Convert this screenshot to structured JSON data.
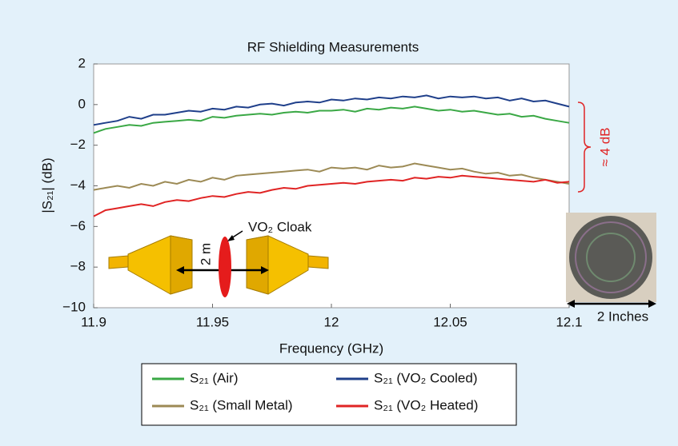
{
  "chart_data": {
    "type": "line",
    "title": "RF Shielding Measurements",
    "x_label": "Frequency (GHz)",
    "y_label": "|S₂₁| (dB)",
    "x": [
      11.9,
      11.905,
      11.91,
      11.915,
      11.92,
      11.925,
      11.93,
      11.935,
      11.94,
      11.945,
      11.95,
      11.955,
      11.96,
      11.965,
      11.97,
      11.975,
      11.98,
      11.985,
      11.99,
      11.995,
      12,
      12.005,
      12.01,
      12.015,
      12.02,
      12.025,
      12.03,
      12.035,
      12.04,
      12.045,
      12.05,
      12.055,
      12.06,
      12.065,
      12.07,
      12.075,
      12.08,
      12.085,
      12.09,
      12.095,
      12.1
    ],
    "series": [
      {
        "name": "S₂₁ (Air)",
        "color": "#3aa845",
        "values": [
          -1.4,
          -1.2,
          -1.1,
          -1.0,
          -1.05,
          -0.9,
          -0.85,
          -0.8,
          -0.75,
          -0.8,
          -0.6,
          -0.65,
          -0.55,
          -0.5,
          -0.45,
          -0.5,
          -0.4,
          -0.35,
          -0.4,
          -0.3,
          -0.3,
          -0.25,
          -0.35,
          -0.2,
          -0.25,
          -0.15,
          -0.2,
          -0.1,
          -0.2,
          -0.3,
          -0.25,
          -0.35,
          -0.3,
          -0.4,
          -0.5,
          -0.45,
          -0.6,
          -0.55,
          -0.7,
          -0.8,
          -0.9
        ]
      },
      {
        "name": "S₂₁ (VO₂ Cooled)",
        "color": "#1f3f8a",
        "values": [
          -1.0,
          -0.9,
          -0.8,
          -0.6,
          -0.7,
          -0.5,
          -0.5,
          -0.4,
          -0.3,
          -0.35,
          -0.2,
          -0.25,
          -0.1,
          -0.15,
          0.0,
          0.05,
          -0.05,
          0.1,
          0.15,
          0.1,
          0.25,
          0.2,
          0.3,
          0.25,
          0.35,
          0.3,
          0.4,
          0.35,
          0.45,
          0.3,
          0.4,
          0.35,
          0.4,
          0.3,
          0.35,
          0.2,
          0.3,
          0.15,
          0.2,
          0.05,
          -0.1
        ]
      },
      {
        "name": "S₂₁ (Small Metal)",
        "color": "#9c8a55",
        "values": [
          -4.2,
          -4.1,
          -4.0,
          -4.1,
          -3.9,
          -4.0,
          -3.8,
          -3.9,
          -3.7,
          -3.8,
          -3.6,
          -3.7,
          -3.5,
          -3.45,
          -3.4,
          -3.35,
          -3.3,
          -3.25,
          -3.2,
          -3.3,
          -3.1,
          -3.15,
          -3.1,
          -3.2,
          -3.0,
          -3.1,
          -3.05,
          -2.9,
          -3.0,
          -3.1,
          -3.2,
          -3.15,
          -3.3,
          -3.4,
          -3.35,
          -3.5,
          -3.45,
          -3.6,
          -3.7,
          -3.8,
          -3.9
        ]
      },
      {
        "name": "S₂₁ (VO₂ Heated)",
        "color": "#e02424",
        "values": [
          -5.5,
          -5.2,
          -5.1,
          -5.0,
          -4.9,
          -5.0,
          -4.8,
          -4.7,
          -4.75,
          -4.6,
          -4.5,
          -4.55,
          -4.4,
          -4.3,
          -4.35,
          -4.2,
          -4.1,
          -4.15,
          -4.0,
          -3.95,
          -3.9,
          -3.85,
          -3.9,
          -3.8,
          -3.75,
          -3.7,
          -3.75,
          -3.6,
          -3.65,
          -3.55,
          -3.6,
          -3.5,
          -3.55,
          -3.6,
          -3.65,
          -3.7,
          -3.75,
          -3.8,
          -3.7,
          -3.85,
          -3.8
        ]
      }
    ],
    "xlim": [
      11.9,
      12.1
    ],
    "xticks": [
      11.9,
      11.95,
      12,
      12.05,
      12.1
    ],
    "ylim": [
      -10,
      2
    ],
    "yticks": [
      2,
      0,
      {
        "value": -2,
        "label": "−2"
      },
      {
        "value": -4,
        "label": "−4"
      },
      {
        "value": -6,
        "label": "−6"
      },
      {
        "value": -8,
        "label": "−8"
      },
      {
        "value": -10,
        "label": "−10"
      }
    ],
    "annotations": [
      "≈ 4 dB",
      "VO₂ Cloak",
      "2 m",
      "2 Inches"
    ]
  }
}
